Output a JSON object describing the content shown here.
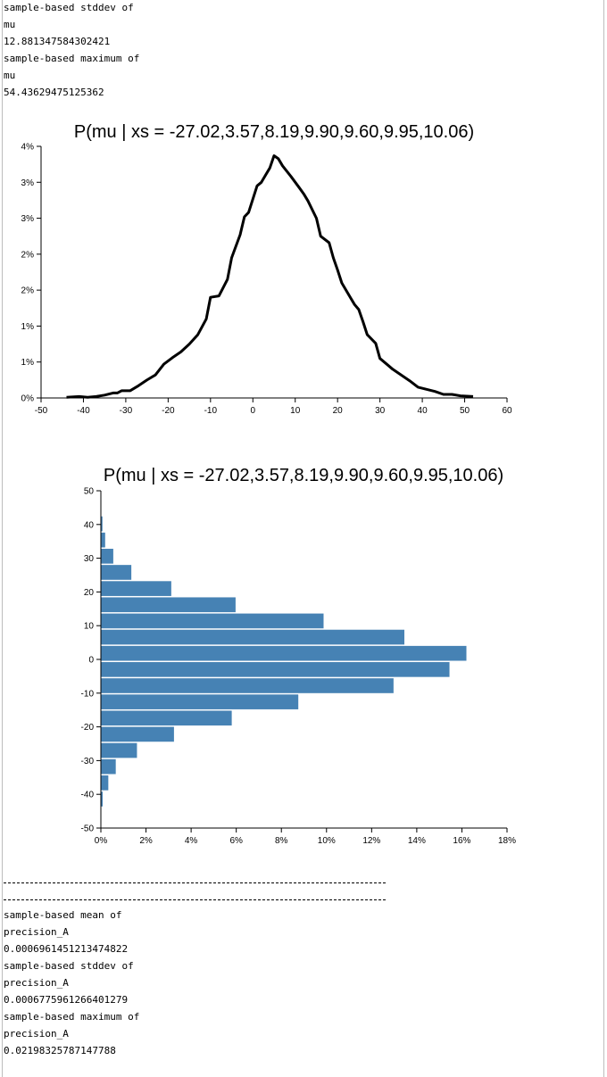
{
  "log_top": [
    "sample-based stddev of",
    "mu",
    "12.881347584302421",
    "sample-based maximum of",
    "mu",
    "54.43629475125362"
  ],
  "log_bottom": [
    "sample-based mean of",
    "precision_A",
    "0.0006961451213474822",
    "sample-based stddev of",
    "precision_A",
    "0.0006775961266401279",
    "sample-based maximum of",
    "precision_A",
    "0.02198325787147788"
  ],
  "chart_data": [
    {
      "type": "line",
      "title": "P(mu | xs = -27.02,3.57,8.19,9.90,9.60,9.95,10.06)",
      "xlabel": "",
      "ylabel": "",
      "xlim": [
        -50,
        60
      ],
      "ylim": [
        0,
        3.5
      ],
      "x_ticks": [
        -50,
        -40,
        -30,
        -20,
        -10,
        0,
        10,
        20,
        30,
        40,
        50,
        60
      ],
      "x_tick_labels": [
        "-50",
        "-40",
        "-30",
        "-20",
        "-10",
        "0",
        "10",
        "20",
        "30",
        "40",
        "50",
        "60"
      ],
      "y_ticks": [
        0,
        0.5,
        1,
        1.5,
        2,
        2.5,
        3,
        3.5
      ],
      "y_tick_labels": [
        "0%",
        "1%",
        "1%",
        "2%",
        "2%",
        "3%",
        "3%",
        "4%"
      ],
      "color": "#000000",
      "series": [
        {
          "x": [
            -44,
            -41,
            -39,
            -37,
            -35,
            -33,
            -32,
            -31,
            -29,
            -27,
            -25,
            -23,
            -21,
            -19,
            -17,
            -15,
            -13,
            -11,
            -10,
            -8,
            -6,
            -5,
            -3,
            -2,
            -1,
            1,
            2,
            3,
            4,
            5,
            6,
            7,
            9,
            11,
            12,
            13,
            15,
            16,
            18,
            19,
            20,
            21,
            23,
            24,
            25,
            26,
            27,
            29,
            30,
            32,
            33,
            35,
            37,
            39,
            41,
            43,
            45,
            47,
            49,
            52
          ],
          "y": [
            0.01,
            0.02,
            0.01,
            0.02,
            0.04,
            0.07,
            0.07,
            0.1,
            0.1,
            0.17,
            0.25,
            0.32,
            0.47,
            0.56,
            0.64,
            0.75,
            0.88,
            1.1,
            1.4,
            1.42,
            1.65,
            1.95,
            2.27,
            2.52,
            2.58,
            2.95,
            3.0,
            3.1,
            3.2,
            3.37,
            3.33,
            3.23,
            3.08,
            2.92,
            2.84,
            2.74,
            2.5,
            2.25,
            2.16,
            1.95,
            1.78,
            1.6,
            1.4,
            1.3,
            1.23,
            1.06,
            0.88,
            0.76,
            0.55,
            0.45,
            0.4,
            0.32,
            0.24,
            0.15,
            0.12,
            0.09,
            0.05,
            0.05,
            0.03,
            0.02
          ]
        }
      ]
    },
    {
      "type": "bar",
      "orientation": "horizontal",
      "title": "P(mu | xs = -27.02,3.57,8.19,9.90,9.60,9.95,10.06)",
      "xlabel": "",
      "ylabel": "",
      "xlim": [
        0,
        18
      ],
      "ylim": [
        -50,
        50
      ],
      "x_ticks": [
        0,
        2,
        4,
        6,
        8,
        10,
        12,
        14,
        16,
        18
      ],
      "x_tick_labels": [
        "0%",
        "2%",
        "4%",
        "6%",
        "8%",
        "10%",
        "12%",
        "14%",
        "16%",
        "18%"
      ],
      "y_ticks": [
        -50,
        -40,
        -30,
        -20,
        -10,
        0,
        10,
        20,
        30,
        40,
        50
      ],
      "y_tick_labels": [
        "-50",
        "-40",
        "-30",
        "-20",
        "-10",
        "0",
        "10",
        "20",
        "30",
        "40",
        "50"
      ],
      "color": "#4682b4",
      "bin_width": 4.8,
      "bins": [
        {
          "start": -48.6,
          "value": 0.02
        },
        {
          "start": -43.8,
          "value": 0.08
        },
        {
          "start": -39.0,
          "value": 0.33
        },
        {
          "start": -34.2,
          "value": 0.66
        },
        {
          "start": -29.4,
          "value": 1.6
        },
        {
          "start": -24.6,
          "value": 3.24
        },
        {
          "start": -19.8,
          "value": 5.8
        },
        {
          "start": -15.0,
          "value": 8.75
        },
        {
          "start": -10.2,
          "value": 12.97
        },
        {
          "start": -5.4,
          "value": 15.45
        },
        {
          "start": -0.6,
          "value": 16.2
        },
        {
          "start": 4.2,
          "value": 13.45
        },
        {
          "start": 9.0,
          "value": 9.87
        },
        {
          "start": 13.8,
          "value": 5.97
        },
        {
          "start": 18.6,
          "value": 3.12
        },
        {
          "start": 23.4,
          "value": 1.35
        },
        {
          "start": 28.2,
          "value": 0.55
        },
        {
          "start": 33.0,
          "value": 0.19
        },
        {
          "start": 37.8,
          "value": 0.07
        },
        {
          "start": 42.6,
          "value": 0.02
        }
      ]
    }
  ]
}
